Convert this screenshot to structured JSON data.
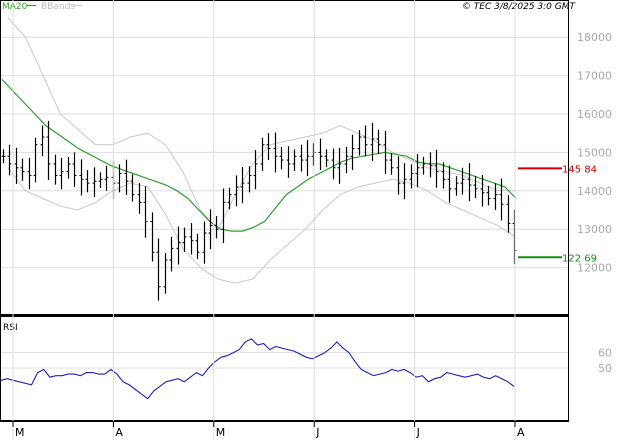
{
  "header": {
    "ma_label": "MA20",
    "bb_label": "BBands",
    "timestamp": "© TEC 3/8/2025 3:0 GMT"
  },
  "colors": {
    "ma": "#2ca02c",
    "bbands": "#c8c8c8",
    "price": "#000000",
    "rsi": "#1f1fbf",
    "grid": "#dddddd",
    "level_high": "#cc0000",
    "level_low": "#109010"
  },
  "chart_data": [
    {
      "type": "ohlc",
      "ylim": [
        11000,
        18500
      ],
      "y_ticks": [
        "18000",
        "17000",
        "16000",
        "15000",
        "14000",
        "13000",
        "12000"
      ],
      "x_ticks": [
        "M",
        "A",
        "M",
        "J",
        "J",
        "A"
      ],
      "series": [
        {
          "name": "MA20"
        },
        {
          "name": "BBands"
        }
      ],
      "price_close": [
        14900,
        14700,
        14600,
        14500,
        14400,
        15200,
        15400,
        14700,
        14400,
        14500,
        14700,
        14400,
        14300,
        14200,
        14250,
        14300,
        14350,
        14200,
        14450,
        14250,
        13900,
        13700,
        13200,
        12400,
        11500,
        12200,
        12500,
        12650,
        12800,
        12700,
        12400,
        12900,
        13100,
        13000,
        13700,
        13900,
        14100,
        14200,
        14400,
        14700,
        15200,
        15100,
        14900,
        14800,
        14700,
        14900,
        14800,
        14900,
        15000,
        14900,
        14800,
        14600,
        14700,
        14900,
        15100,
        15400,
        15200,
        15350,
        15200,
        14800,
        14600,
        14200,
        14300,
        14450,
        14600,
        14700,
        14650,
        14500,
        14300,
        14050,
        14200,
        14300,
        14150,
        14050,
        13950,
        13800,
        13900,
        13650,
        13150,
        12450
      ],
      "ma20": [
        16900,
        16600,
        16300,
        16000,
        15700,
        15500,
        15300,
        15100,
        14950,
        14800,
        14650,
        14550,
        14450,
        14350,
        14250,
        14150,
        14000,
        13800,
        13500,
        13200,
        13000,
        12950,
        12950,
        13050,
        13200,
        13550,
        13900,
        14100,
        14300,
        14450,
        14600,
        14750,
        14850,
        14900,
        14950,
        15000,
        14950,
        14900,
        14750,
        14700,
        14700,
        14600,
        14500,
        14400,
        14300,
        14200,
        14100,
        13800
      ],
      "bb_upper": [
        18500,
        18000,
        17000,
        16000,
        15600,
        15200,
        15200,
        15400,
        15500,
        15200,
        14500,
        13500,
        13000,
        13900,
        14700,
        15200,
        15300,
        15400,
        15500,
        15700,
        15500,
        15300,
        15000,
        14800,
        14600,
        14500,
        14400,
        14200,
        14000,
        14000
      ],
      "bb_lower": [
        14600,
        14000,
        13800,
        13600,
        13500,
        13700,
        14000,
        14200,
        14100,
        13400,
        12500,
        12000,
        11700,
        11600,
        11700,
        12200,
        12600,
        13000,
        13500,
        13900,
        14100,
        14200,
        14300,
        14200,
        14000,
        13700,
        13500,
        13300,
        13100,
        12800
      ],
      "levels": [
        {
          "name": "high",
          "value": 14584,
          "label": "145 84"
        },
        {
          "name": "low",
          "value": 12269,
          "label": "122 69"
        }
      ]
    },
    {
      "type": "line",
      "title": "RSI",
      "ylim": [
        20,
        80
      ],
      "y_ticks": [
        "60",
        "50"
      ],
      "series": [
        {
          "name": "RSI",
          "values": [
            42,
            43,
            42,
            41,
            40,
            39,
            47,
            49,
            44,
            45,
            45,
            46,
            46,
            45,
            47,
            47,
            46,
            46,
            49,
            46,
            41,
            39,
            36,
            33,
            30,
            35,
            38,
            41,
            42,
            43,
            41,
            44,
            47,
            45,
            50,
            54,
            57,
            58,
            60,
            62,
            67,
            69,
            65,
            66,
            62,
            64,
            63,
            62,
            61,
            59,
            57,
            56,
            58,
            60,
            63,
            67,
            63,
            60,
            54,
            49,
            47,
            45,
            46,
            47,
            49,
            48,
            49,
            47,
            44,
            45,
            41,
            43,
            44,
            47,
            46,
            45,
            44,
            45,
            46,
            44,
            43,
            45,
            43,
            41,
            38
          ]
        }
      ]
    }
  ]
}
